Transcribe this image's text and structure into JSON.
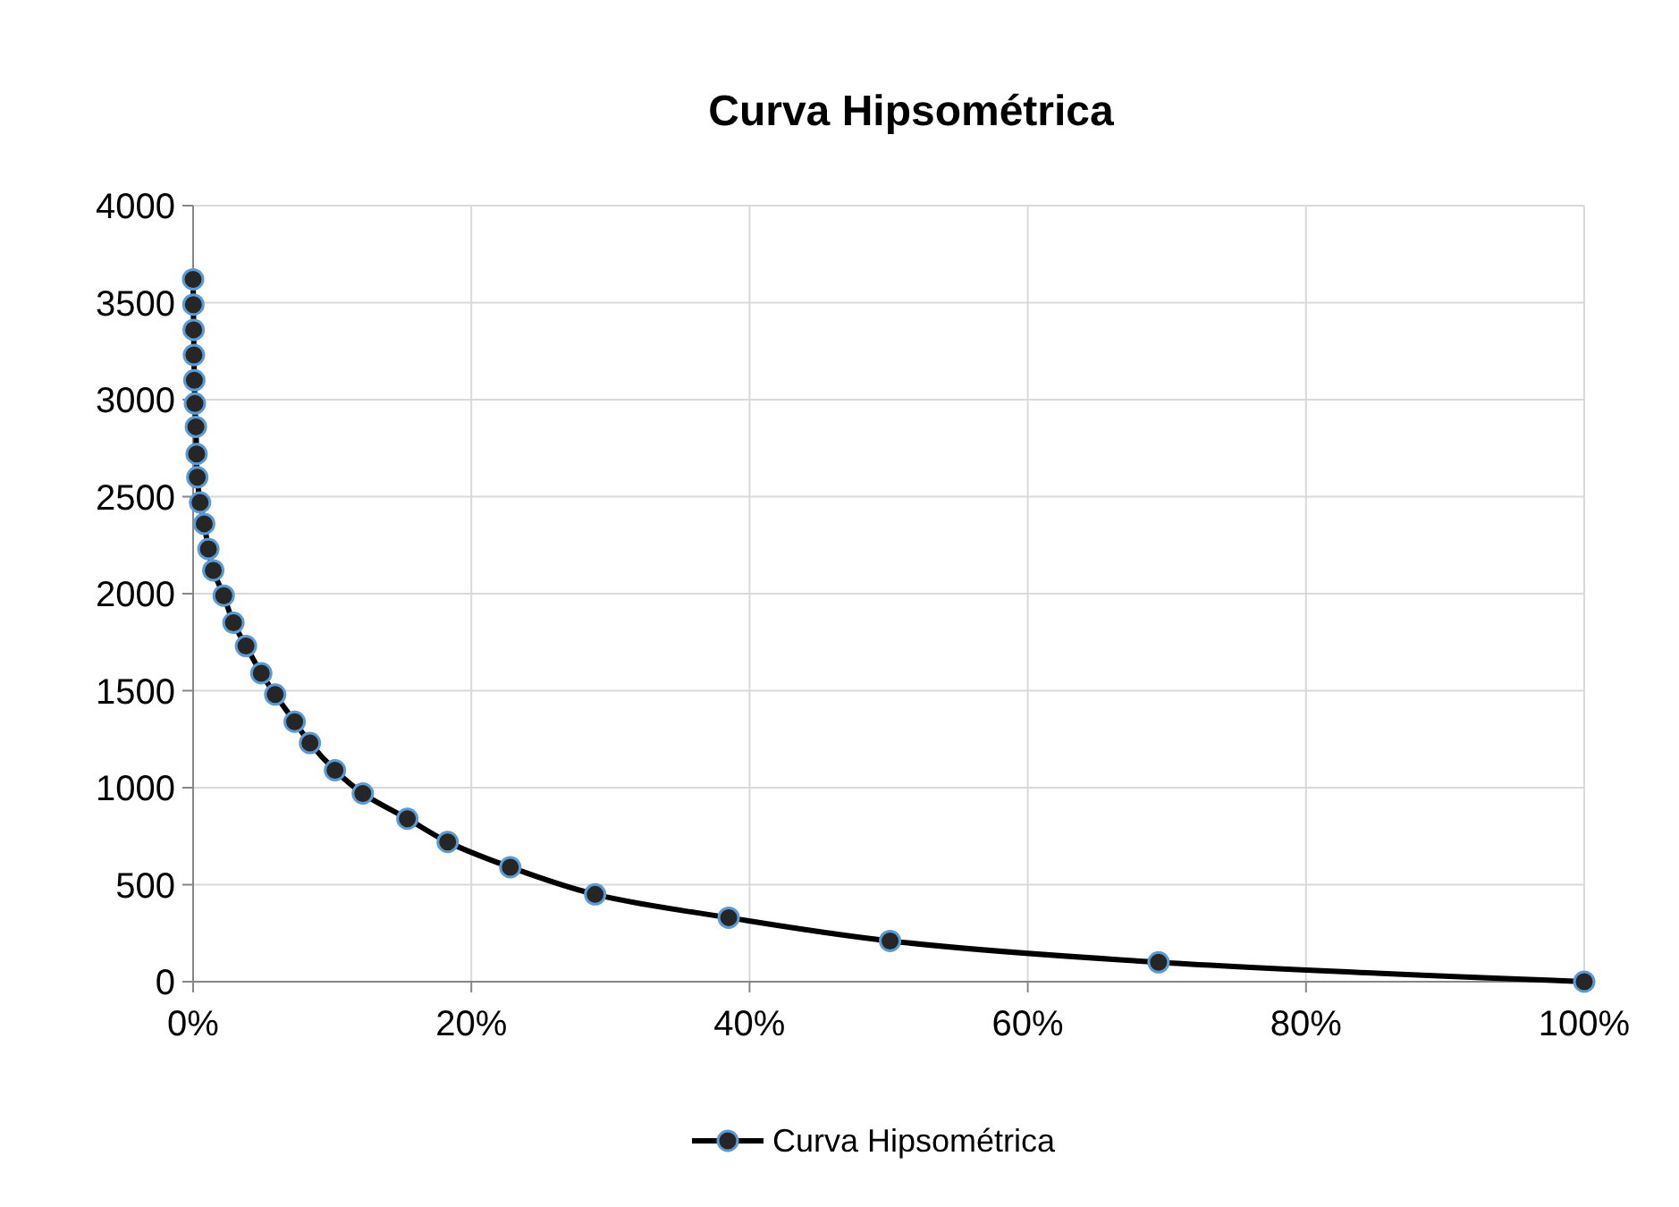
{
  "chart_data": {
    "type": "line",
    "title": "Curva Hipsométrica",
    "x": [
      0,
      0.02,
      0.04,
      0.06,
      0.09,
      0.13,
      0.2,
      0.25,
      0.3,
      0.5,
      0.8,
      1.1,
      1.45,
      2.2,
      2.9,
      3.8,
      4.9,
      5.9,
      7.3,
      8.4,
      10.2,
      12.2,
      15.4,
      18.3,
      22.8,
      28.9,
      38.5,
      50.1,
      69.4,
      100
    ],
    "series": [
      {
        "name": "Curva Hipsométrica",
        "color": "#000000",
        "values": [
          3620,
          3490,
          3360,
          3230,
          3100,
          2980,
          2860,
          2720,
          2600,
          2470,
          2360,
          2230,
          2120,
          1990,
          1850,
          1730,
          1590,
          1480,
          1340,
          1230,
          1090,
          970,
          840,
          720,
          590,
          450,
          330,
          210,
          100,
          0
        ]
      }
    ],
    "xlim": [
      0,
      100
    ],
    "xticks": [
      {
        "value": 0,
        "label": "0%"
      },
      {
        "value": 20,
        "label": "20%"
      },
      {
        "value": 40,
        "label": "40%"
      },
      {
        "value": 60,
        "label": "60%"
      },
      {
        "value": 80,
        "label": "80%"
      },
      {
        "value": 100,
        "label": "100%"
      }
    ],
    "ylim": [
      0,
      4000
    ],
    "yticks": [
      0,
      500,
      1000,
      1500,
      2000,
      2500,
      3000,
      3500,
      4000
    ],
    "grid": true,
    "legend": "bottom",
    "marker": "circle",
    "line_style": "solid"
  }
}
